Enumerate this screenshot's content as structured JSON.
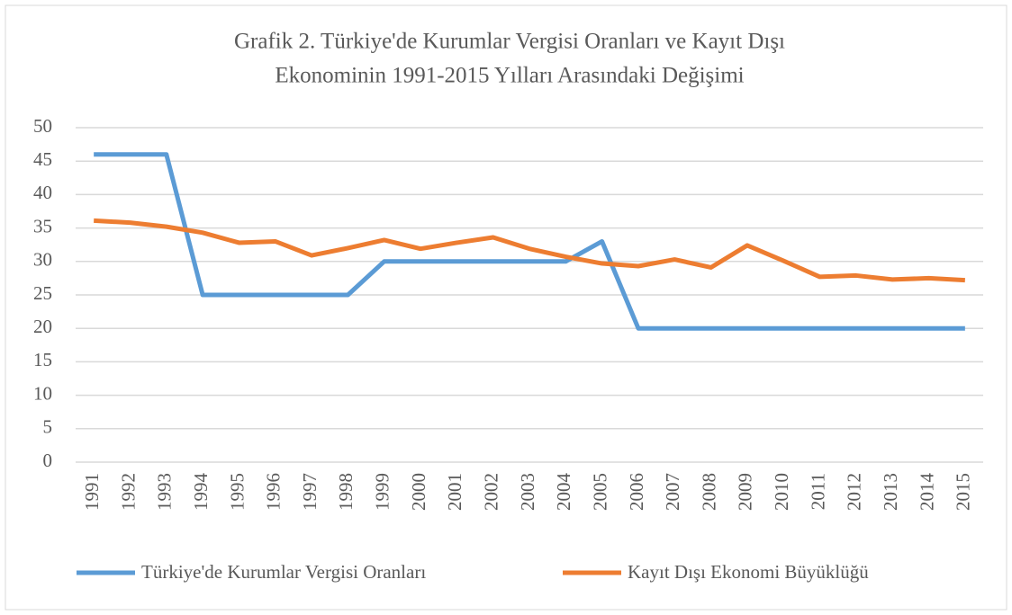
{
  "chart_data": {
    "type": "line",
    "title": [
      "Grafik 2. Türkiye'de Kurumlar Vergisi Oranları ve Kayıt Dışı",
      "Ekonominin 1991-2015 Yılları Arasındaki Değişimi"
    ],
    "categories": [
      "1991",
      "1992",
      "1993",
      "1994",
      "1995",
      "1996",
      "1997",
      "1998",
      "1999",
      "2000",
      "2001",
      "2002",
      "2003",
      "2004",
      "2005",
      "2006",
      "2007",
      "2008",
      "2009",
      "2010",
      "2011",
      "2012",
      "2013",
      "2014",
      "2015"
    ],
    "series": [
      {
        "name": "Türkiye'de Kurumlar Vergisi Oranları",
        "color": "#5b9bd5",
        "values": [
          46,
          46,
          46,
          25,
          25,
          25,
          25,
          25,
          30,
          30,
          30,
          30,
          30,
          30,
          33,
          20,
          20,
          20,
          20,
          20,
          20,
          20,
          20,
          20,
          20
        ]
      },
      {
        "name": "Kayıt Dışı Ekonomi Büyüklüğü",
        "color": "#ed7d31",
        "values": [
          36.1,
          35.8,
          35.2,
          34.3,
          32.8,
          33.0,
          30.9,
          32.0,
          33.2,
          31.9,
          32.8,
          33.6,
          31.9,
          30.7,
          29.7,
          29.3,
          30.3,
          29.1,
          32.4,
          30.1,
          27.7,
          27.9,
          27.3,
          27.5,
          27.2
        ]
      }
    ],
    "ylim": [
      0,
      50
    ],
    "yticks": [
      0,
      5,
      10,
      15,
      20,
      25,
      30,
      35,
      40,
      45,
      50
    ],
    "grid": true,
    "legend": "bottom"
  }
}
